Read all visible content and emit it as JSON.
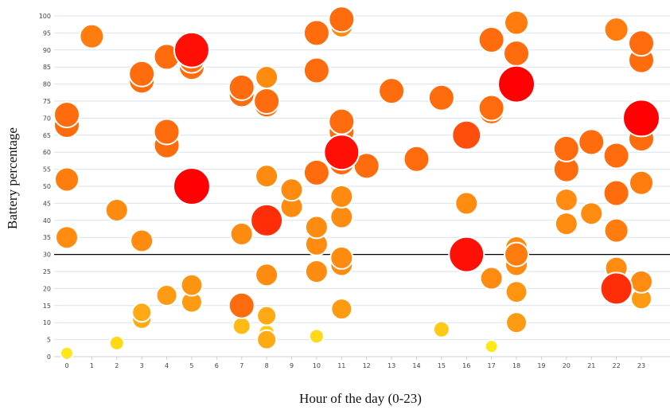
{
  "chart_data": {
    "type": "scatter",
    "title": "",
    "xlabel": "Hour of the day (0-23)",
    "ylabel": "Battery percentage",
    "xlim": [
      0,
      23
    ],
    "ylim": [
      0,
      100
    ],
    "x_ticks": [
      0,
      1,
      2,
      3,
      4,
      5,
      6,
      7,
      8,
      9,
      10,
      11,
      12,
      13,
      14,
      15,
      16,
      17,
      18,
      19,
      20,
      21,
      22,
      23
    ],
    "y_ticks": [
      0,
      5,
      10,
      15,
      20,
      25,
      30,
      35,
      40,
      45,
      50,
      55,
      60,
      65,
      70,
      75,
      80,
      85,
      90,
      95,
      100
    ],
    "grid": true,
    "reference_line": {
      "y": 30,
      "color": "#000000"
    },
    "size_and_color_encode": "third variable (larger, redder bubbles = higher value)",
    "points": [
      {
        "x": 0,
        "y": 1,
        "s": 0.15
      },
      {
        "x": 0,
        "y": 35,
        "s": 0.45
      },
      {
        "x": 0,
        "y": 52,
        "s": 0.5
      },
      {
        "x": 0,
        "y": 68,
        "s": 0.55
      },
      {
        "x": 0,
        "y": 71,
        "s": 0.55
      },
      {
        "x": 1,
        "y": 94,
        "s": 0.5
      },
      {
        "x": 2,
        "y": 4,
        "s": 0.2
      },
      {
        "x": 2,
        "y": 43,
        "s": 0.45
      },
      {
        "x": 3,
        "y": 11,
        "s": 0.35
      },
      {
        "x": 3,
        "y": 13,
        "s": 0.35
      },
      {
        "x": 3,
        "y": 34,
        "s": 0.45
      },
      {
        "x": 3,
        "y": 81,
        "s": 0.55
      },
      {
        "x": 3,
        "y": 83,
        "s": 0.55
      },
      {
        "x": 4,
        "y": 18,
        "s": 0.4
      },
      {
        "x": 4,
        "y": 62,
        "s": 0.55
      },
      {
        "x": 4,
        "y": 66,
        "s": 0.55
      },
      {
        "x": 4,
        "y": 88,
        "s": 0.55
      },
      {
        "x": 5,
        "y": 16,
        "s": 0.4
      },
      {
        "x": 5,
        "y": 21,
        "s": 0.42
      },
      {
        "x": 5,
        "y": 50,
        "s": 0.9
      },
      {
        "x": 5,
        "y": 85,
        "s": 0.55
      },
      {
        "x": 5,
        "y": 87,
        "s": 0.55
      },
      {
        "x": 5,
        "y": 90,
        "s": 0.85
      },
      {
        "x": 5,
        "y": 91,
        "s": 0.4
      },
      {
        "x": 7,
        "y": 9,
        "s": 0.3
      },
      {
        "x": 7,
        "y": 15,
        "s": 0.55
      },
      {
        "x": 7,
        "y": 36,
        "s": 0.45
      },
      {
        "x": 7,
        "y": 77,
        "s": 0.55
      },
      {
        "x": 7,
        "y": 79,
        "s": 0.55
      },
      {
        "x": 8,
        "y": 5,
        "s": 0.35
      },
      {
        "x": 8,
        "y": 7,
        "s": 0.25
      },
      {
        "x": 8,
        "y": 12,
        "s": 0.35
      },
      {
        "x": 8,
        "y": 24,
        "s": 0.45
      },
      {
        "x": 8,
        "y": 40,
        "s": 0.75
      },
      {
        "x": 8,
        "y": 53,
        "s": 0.45
      },
      {
        "x": 8,
        "y": 74,
        "s": 0.55
      },
      {
        "x": 8,
        "y": 75,
        "s": 0.55
      },
      {
        "x": 8,
        "y": 82,
        "s": 0.45
      },
      {
        "x": 9,
        "y": 44,
        "s": 0.45
      },
      {
        "x": 9,
        "y": 49,
        "s": 0.45
      },
      {
        "x": 10,
        "y": 6,
        "s": 0.2
      },
      {
        "x": 10,
        "y": 25,
        "s": 0.45
      },
      {
        "x": 10,
        "y": 33,
        "s": 0.45
      },
      {
        "x": 10,
        "y": 38,
        "s": 0.45
      },
      {
        "x": 10,
        "y": 54,
        "s": 0.55
      },
      {
        "x": 10,
        "y": 84,
        "s": 0.55
      },
      {
        "x": 10,
        "y": 95,
        "s": 0.55
      },
      {
        "x": 11,
        "y": 14,
        "s": 0.4
      },
      {
        "x": 11,
        "y": 27,
        "s": 0.45
      },
      {
        "x": 11,
        "y": 29,
        "s": 0.45
      },
      {
        "x": 11,
        "y": 41,
        "s": 0.45
      },
      {
        "x": 11,
        "y": 47,
        "s": 0.45
      },
      {
        "x": 11,
        "y": 57,
        "s": 0.55
      },
      {
        "x": 11,
        "y": 60,
        "s": 0.85
      },
      {
        "x": 11,
        "y": 66,
        "s": 0.55
      },
      {
        "x": 11,
        "y": 69,
        "s": 0.55
      },
      {
        "x": 11,
        "y": 97,
        "s": 0.45
      },
      {
        "x": 11,
        "y": 99,
        "s": 0.55
      },
      {
        "x": 12,
        "y": 56,
        "s": 0.55
      },
      {
        "x": 13,
        "y": 78,
        "s": 0.55
      },
      {
        "x": 14,
        "y": 58,
        "s": 0.55
      },
      {
        "x": 15,
        "y": 8,
        "s": 0.25
      },
      {
        "x": 15,
        "y": 76,
        "s": 0.55
      },
      {
        "x": 16,
        "y": 30,
        "s": 0.85
      },
      {
        "x": 16,
        "y": 45,
        "s": 0.45
      },
      {
        "x": 16,
        "y": 65,
        "s": 0.65
      },
      {
        "x": 17,
        "y": 3,
        "s": 0.15
      },
      {
        "x": 17,
        "y": 23,
        "s": 0.45
      },
      {
        "x": 17,
        "y": 72,
        "s": 0.55
      },
      {
        "x": 17,
        "y": 73,
        "s": 0.55
      },
      {
        "x": 17,
        "y": 93,
        "s": 0.55
      },
      {
        "x": 18,
        "y": 10,
        "s": 0.4
      },
      {
        "x": 18,
        "y": 19,
        "s": 0.42
      },
      {
        "x": 18,
        "y": 27,
        "s": 0.45
      },
      {
        "x": 18,
        "y": 30,
        "s": 0.5
      },
      {
        "x": 18,
        "y": 32,
        "s": 0.45
      },
      {
        "x": 18,
        "y": 80,
        "s": 0.9
      },
      {
        "x": 18,
        "y": 89,
        "s": 0.55
      },
      {
        "x": 18,
        "y": 98,
        "s": 0.5
      },
      {
        "x": 20,
        "y": 39,
        "s": 0.45
      },
      {
        "x": 20,
        "y": 46,
        "s": 0.45
      },
      {
        "x": 20,
        "y": 55,
        "s": 0.55
      },
      {
        "x": 20,
        "y": 61,
        "s": 0.55
      },
      {
        "x": 21,
        "y": 42,
        "s": 0.45
      },
      {
        "x": 21,
        "y": 63,
        "s": 0.55
      },
      {
        "x": 22,
        "y": 20,
        "s": 0.75
      },
      {
        "x": 22,
        "y": 26,
        "s": 0.45
      },
      {
        "x": 22,
        "y": 37,
        "s": 0.5
      },
      {
        "x": 22,
        "y": 48,
        "s": 0.55
      },
      {
        "x": 22,
        "y": 59,
        "s": 0.55
      },
      {
        "x": 22,
        "y": 96,
        "s": 0.5
      },
      {
        "x": 23,
        "y": 17,
        "s": 0.4
      },
      {
        "x": 23,
        "y": 22,
        "s": 0.45
      },
      {
        "x": 23,
        "y": 51,
        "s": 0.5
      },
      {
        "x": 23,
        "y": 64,
        "s": 0.55
      },
      {
        "x": 23,
        "y": 70,
        "s": 0.9
      },
      {
        "x": 23,
        "y": 87,
        "s": 0.55
      },
      {
        "x": 23,
        "y": 92,
        "s": 0.55
      }
    ]
  }
}
